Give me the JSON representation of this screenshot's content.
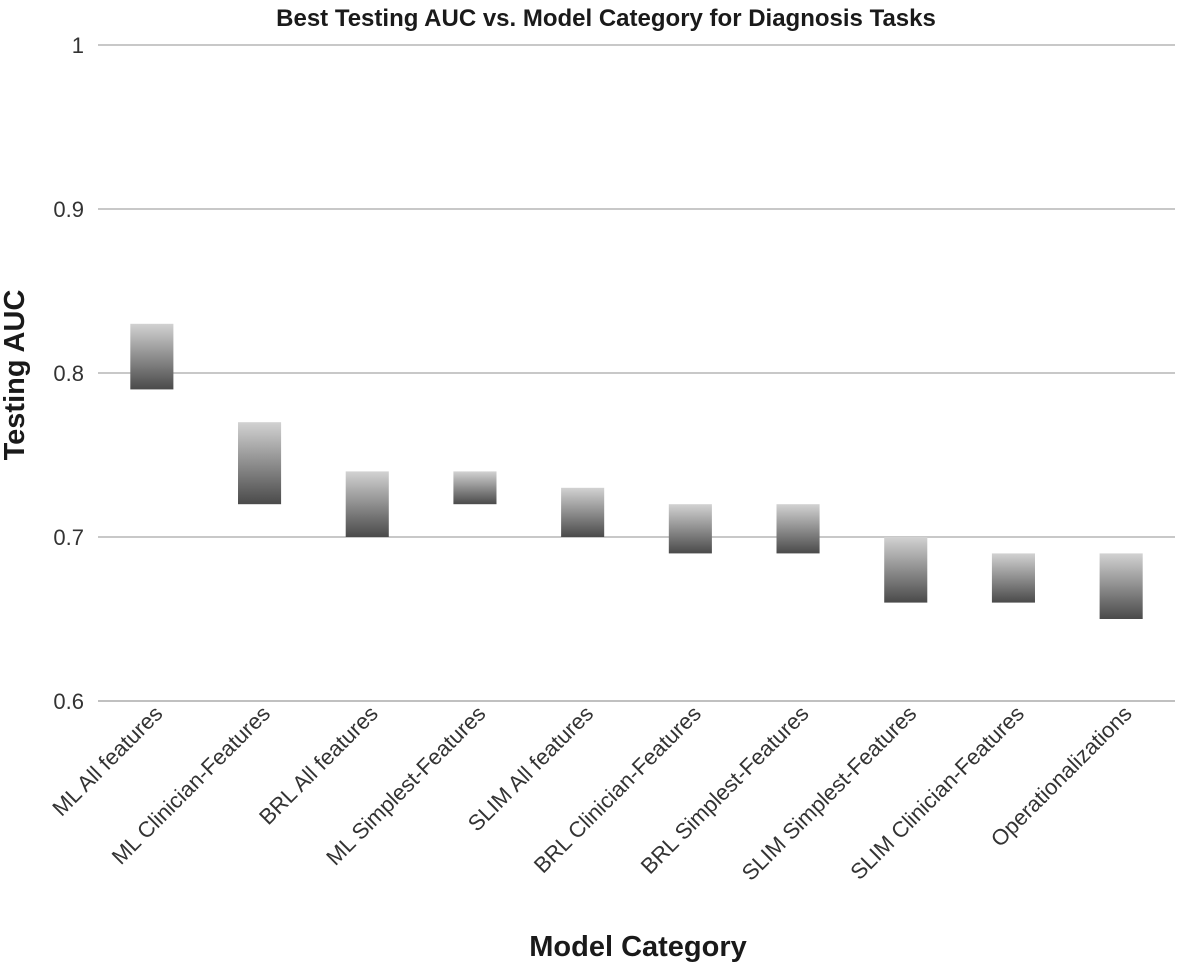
{
  "chart_data": {
    "type": "bar",
    "subtype": "floating-range",
    "title": "Best Testing AUC vs. Model Category for Diagnosis Tasks",
    "xlabel": "Model Category",
    "ylabel": "Testing AUC",
    "ylim": [
      0.6,
      1.0
    ],
    "yticks": [
      0.6,
      0.7,
      0.8,
      0.9,
      1.0
    ],
    "ytick_labels": [
      "0.6",
      "0.7",
      "0.8",
      "0.9",
      "1"
    ],
    "grid": true,
    "legend": "none",
    "colors": {
      "bar_top": "#d2d2d2",
      "bar_bottom": "#4a4a4a",
      "grid": "#a8a8a8"
    },
    "categories": [
      "ML All features",
      "ML Clinician-Features",
      "BRL All features",
      "ML Simplest-Features",
      "SLIM All features",
      "BRL Clinician-Features",
      "BRL Simplest-Features",
      "SLIM Simplest-Features",
      "SLIM Clinician-Features",
      "Operationalizations"
    ],
    "low": [
      0.79,
      0.72,
      0.7,
      0.72,
      0.7,
      0.69,
      0.69,
      0.66,
      0.66,
      0.65
    ],
    "high": [
      0.83,
      0.77,
      0.74,
      0.74,
      0.73,
      0.72,
      0.72,
      0.7,
      0.69,
      0.69
    ]
  }
}
